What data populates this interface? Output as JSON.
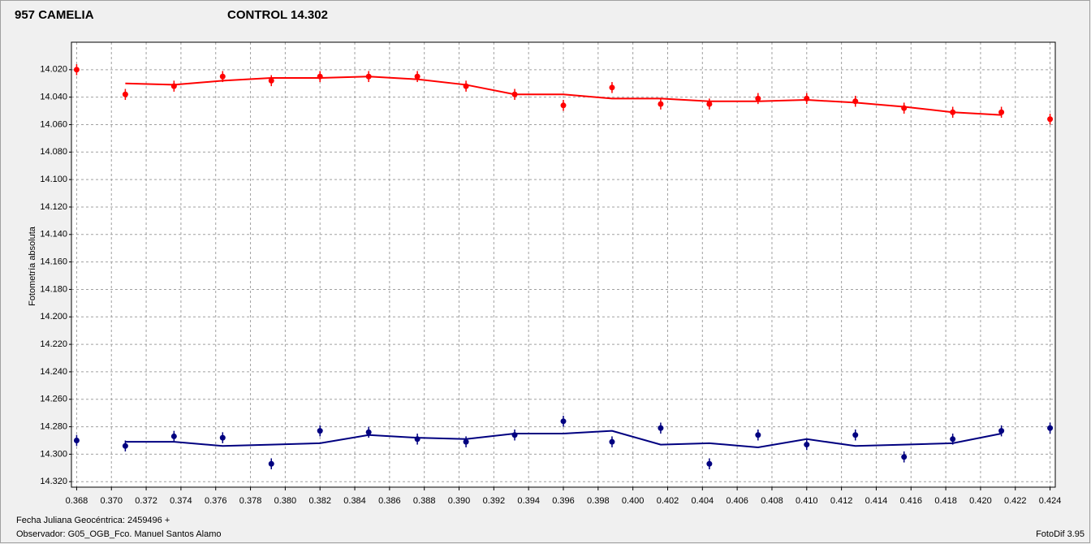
{
  "chart_data": {
    "type": "scatter",
    "y_label": "Fotometría absoluta",
    "x_label": "Fecha Juliana Geocéntrica: 2459496 +",
    "observer": "Observador: G05_OGB_Fco. Manuel Santos Alamo",
    "software": "FotoDif 3.95",
    "y_inverted": true,
    "grid": true,
    "xlim": [
      0.3677,
      0.4243
    ],
    "ylim": [
      14.0,
      14.324
    ],
    "xticks": [
      {
        "value": 0.368,
        "label": "0.368"
      },
      {
        "value": 0.37,
        "label": "0.370"
      },
      {
        "value": 0.372,
        "label": "0.372"
      },
      {
        "value": 0.374,
        "label": "0.374"
      },
      {
        "value": 0.376,
        "label": "0.376"
      },
      {
        "value": 0.378,
        "label": "0.378"
      },
      {
        "value": 0.38,
        "label": "0.380"
      },
      {
        "value": 0.382,
        "label": "0.382"
      },
      {
        "value": 0.384,
        "label": "0.384"
      },
      {
        "value": 0.386,
        "label": "0.386"
      },
      {
        "value": 0.388,
        "label": "0.388"
      },
      {
        "value": 0.39,
        "label": "0.390"
      },
      {
        "value": 0.392,
        "label": "0.392"
      },
      {
        "value": 0.394,
        "label": "0.394"
      },
      {
        "value": 0.396,
        "label": "0.396"
      },
      {
        "value": 0.398,
        "label": "0.398"
      },
      {
        "value": 0.4,
        "label": "0.400"
      },
      {
        "value": 0.402,
        "label": "0.402"
      },
      {
        "value": 0.404,
        "label": "0.404"
      },
      {
        "value": 0.406,
        "label": "0.406"
      },
      {
        "value": 0.408,
        "label": "0.408"
      },
      {
        "value": 0.41,
        "label": "0.410"
      },
      {
        "value": 0.412,
        "label": "0.412"
      },
      {
        "value": 0.414,
        "label": "0.414"
      },
      {
        "value": 0.416,
        "label": "0.416"
      },
      {
        "value": 0.418,
        "label": "0.418"
      },
      {
        "value": 0.42,
        "label": "0.420"
      },
      {
        "value": 0.422,
        "label": "0.422"
      },
      {
        "value": 0.424,
        "label": "0.424"
      }
    ],
    "yticks": [
      {
        "value": 14.02,
        "label": "14.020"
      },
      {
        "value": 14.04,
        "label": "14.040"
      },
      {
        "value": 14.06,
        "label": "14.060"
      },
      {
        "value": 14.08,
        "label": "14.080"
      },
      {
        "value": 14.1,
        "label": "14.100"
      },
      {
        "value": 14.12,
        "label": "14.120"
      },
      {
        "value": 14.14,
        "label": "14.140"
      },
      {
        "value": 14.16,
        "label": "14.160"
      },
      {
        "value": 14.18,
        "label": "14.180"
      },
      {
        "value": 14.2,
        "label": "14.200"
      },
      {
        "value": 14.22,
        "label": "14.220"
      },
      {
        "value": 14.24,
        "label": "14.240"
      },
      {
        "value": 14.26,
        "label": "14.260"
      },
      {
        "value": 14.28,
        "label": "14.280"
      },
      {
        "value": 14.3,
        "label": "14.300"
      },
      {
        "value": 14.32,
        "label": "14.320"
      }
    ],
    "x": [
      0.368,
      0.3708,
      0.3736,
      0.3764,
      0.3792,
      0.382,
      0.3848,
      0.3876,
      0.3904,
      0.3932,
      0.396,
      0.3988,
      0.4016,
      0.4044,
      0.4072,
      0.41,
      0.4128,
      0.4156,
      0.4184,
      0.4212,
      0.424
    ],
    "series": [
      {
        "name": "957 CAMELIA",
        "color": "#ff0000",
        "error": 0.004,
        "values": [
          14.02,
          14.038,
          14.032,
          14.025,
          14.028,
          14.025,
          14.025,
          14.025,
          14.032,
          14.038,
          14.046,
          14.033,
          14.045,
          14.045,
          14.041,
          14.041,
          14.043,
          14.048,
          14.051,
          14.051,
          14.056
        ],
        "trend": [
          null,
          14.03,
          14.031,
          14.028,
          14.026,
          14.026,
          14.025,
          14.027,
          14.031,
          14.038,
          14.038,
          14.041,
          14.041,
          14.043,
          14.043,
          14.042,
          14.044,
          14.047,
          14.051,
          14.053,
          null
        ]
      },
      {
        "name": "CONTROL 14.302",
        "color": "#000080",
        "error": 0.004,
        "values": [
          14.29,
          14.294,
          14.287,
          14.288,
          14.307,
          14.283,
          14.284,
          14.289,
          14.291,
          14.286,
          14.276,
          14.291,
          14.281,
          14.307,
          14.286,
          14.293,
          14.286,
          14.302,
          14.289,
          14.283,
          14.281
        ],
        "trend": [
          null,
          14.291,
          14.291,
          14.294,
          14.293,
          14.292,
          14.286,
          14.288,
          14.289,
          14.285,
          14.285,
          14.283,
          14.293,
          14.292,
          14.295,
          14.289,
          14.294,
          14.293,
          14.292,
          14.285,
          null
        ]
      }
    ]
  }
}
